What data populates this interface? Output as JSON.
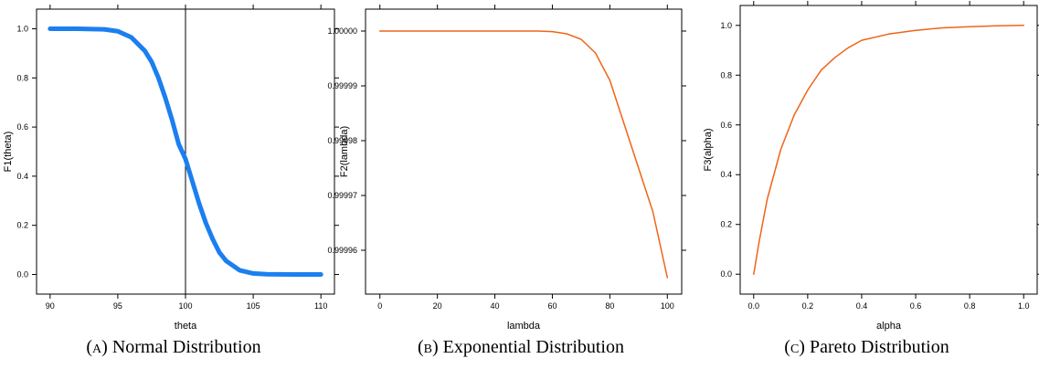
{
  "chart_data": [
    {
      "type": "line",
      "caption_label": "(a)",
      "caption_text": "Normal Distribution",
      "xlabel": "theta",
      "ylabel": "F1(theta)",
      "xlim": [
        89,
        111
      ],
      "ylim": [
        -0.08,
        1.08
      ],
      "x_ticks": [
        "90",
        "95",
        "100",
        "105",
        "110"
      ],
      "y_ticks": [
        "0.0",
        "0.2",
        "0.4",
        "0.6",
        "0.8",
        "1.0"
      ],
      "vertical_reference_line_x": 100,
      "line_color": "#1b7ff0",
      "x": [
        90,
        92,
        94,
        95,
        96,
        97,
        97.5,
        98,
        98.5,
        99,
        99.5,
        100,
        100.5,
        101,
        101.5,
        102,
        102.5,
        103,
        104,
        105,
        106,
        108,
        110
      ],
      "y": [
        1.0,
        1.0,
        0.998,
        0.99,
        0.965,
        0.91,
        0.865,
        0.8,
        0.72,
        0.63,
        0.53,
        0.47,
        0.38,
        0.29,
        0.21,
        0.145,
        0.09,
        0.055,
        0.017,
        0.004,
        0.001,
        0.0,
        0.0
      ]
    },
    {
      "type": "line",
      "caption_label": "(b)",
      "caption_text": "Exponential Distribution",
      "xlabel": "lambda",
      "ylabel": "F2(lambda)",
      "xlim": [
        -5,
        105
      ],
      "ylim": [
        0.999952,
        1.000004
      ],
      "x_ticks": [
        "0",
        "20",
        "40",
        "60",
        "80",
        "100"
      ],
      "y_ticks": [
        "0.99996",
        "0.99997",
        "0.99998",
        "0.99999",
        "1.00000"
      ],
      "line_color": "#f06418",
      "x": [
        0,
        20,
        40,
        55,
        60,
        65,
        70,
        75,
        80,
        85,
        90,
        95,
        100
      ],
      "y": [
        1.0,
        1.0,
        1.0,
        1.0,
        0.9999999,
        0.9999995,
        0.9999985,
        0.999996,
        0.999991,
        0.999983,
        0.999975,
        0.999967,
        0.999955
      ]
    },
    {
      "type": "line",
      "caption_label": "(c)",
      "caption_text": "Pareto Distribution",
      "xlabel": "alpha",
      "ylabel": "F3(alpha)",
      "xlim": [
        -0.05,
        1.05
      ],
      "ylim": [
        -0.08,
        1.08
      ],
      "x_ticks": [
        "0.0",
        "0.2",
        "0.4",
        "0.6",
        "0.8",
        "1.0"
      ],
      "y_ticks": [
        "0.0",
        "0.2",
        "0.4",
        "0.6",
        "0.8",
        "1.0"
      ],
      "line_color": "#f06418",
      "x": [
        0,
        0.02,
        0.05,
        0.1,
        0.15,
        0.2,
        0.25,
        0.3,
        0.35,
        0.4,
        0.5,
        0.6,
        0.7,
        0.8,
        0.9,
        1.0
      ],
      "y": [
        0.0,
        0.13,
        0.3,
        0.5,
        0.64,
        0.74,
        0.82,
        0.87,
        0.91,
        0.94,
        0.965,
        0.98,
        0.99,
        0.995,
        0.998,
        1.0
      ]
    }
  ]
}
